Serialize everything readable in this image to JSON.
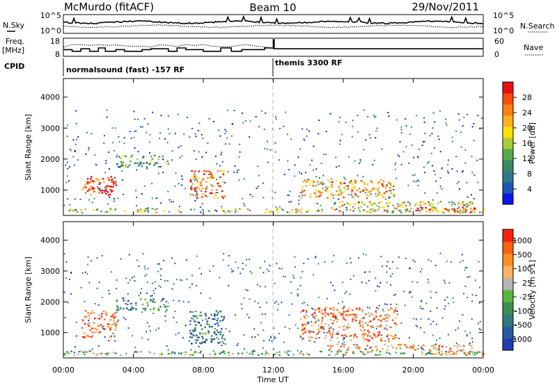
{
  "header": {
    "station": "McMurdo (fitACF)",
    "beam": "Beam 10",
    "date": "29/Nov/2011"
  },
  "noise_panel": {
    "left_label": "N.Sky",
    "right_label": "N.Search",
    "left_ticks": [
      "10^5",
      "10^0"
    ],
    "right_ticks": [
      "10^5",
      "10^0"
    ]
  },
  "freq_panel": {
    "left_label_line1": "Freq.",
    "left_label_line2": "[MHz]",
    "right_label": "Nave",
    "left_ticks": [
      "18",
      "8"
    ],
    "right_ticks": [
      "60",
      "0"
    ]
  },
  "cpid": {
    "label": "CPID",
    "segments": [
      {
        "name": "normalsound (fast) -157 RF",
        "start_hour": 0
      },
      {
        "name": "themis 3300 RF",
        "start_hour": 12
      }
    ]
  },
  "time_axis": {
    "label": "Time UT",
    "ticks": [
      "00:00",
      "04:00",
      "08:00",
      "12:00",
      "16:00",
      "20:00",
      "00:00"
    ]
  },
  "chart_data": [
    {
      "type": "heatmap",
      "title": "",
      "xlabel": "Time UT",
      "ylabel": "Slant Range [km]",
      "xlim_hours": [
        0,
        24
      ],
      "ylim_km": [
        180,
        4600
      ],
      "y_ticks": [
        "1000",
        "2000",
        "3000",
        "4000"
      ],
      "colorbar": {
        "label": "Power [dB]",
        "ticks": [
          "4",
          "8",
          "12",
          "16",
          "20",
          "24",
          "28"
        ],
        "colors": [
          "#0a18e8",
          "#1e56b4",
          "#2e7a8a",
          "#3c8a64",
          "#58a84e",
          "#a8cc3a",
          "#ffe000",
          "#ffb020",
          "#ff8010",
          "#ff4a10",
          "#e81010"
        ]
      },
      "echo_regions": [
        {
          "hours": [
            0.0,
            24.0
          ],
          "km": [
            240,
            380
          ],
          "level": 0.55
        },
        {
          "hours": [
            1.0,
            3.0
          ],
          "km": [
            800,
            1400
          ],
          "level": 0.9
        },
        {
          "hours": [
            2.0,
            2.8
          ],
          "km": [
            850,
            1250
          ],
          "level": 1.0
        },
        {
          "hours": [
            3.0,
            6.0
          ],
          "km": [
            1700,
            2100
          ],
          "level": 0.35
        },
        {
          "hours": [
            7.2,
            9.2
          ],
          "km": [
            700,
            1600
          ],
          "level": 0.8
        },
        {
          "hours": [
            13.5,
            19.0
          ],
          "km": [
            700,
            1300
          ],
          "level": 0.7
        },
        {
          "hours": [
            15.0,
            23.5
          ],
          "km": [
            400,
            600
          ],
          "level": 0.55
        },
        {
          "hours": [
            20.0,
            23.5
          ],
          "km": [
            250,
            420
          ],
          "level": 0.9
        }
      ]
    },
    {
      "type": "heatmap",
      "title": "",
      "xlabel": "Time UT",
      "ylabel": "Slant Range [km]",
      "xlim_hours": [
        0,
        24
      ],
      "ylim_km": [
        180,
        4600
      ],
      "y_ticks": [
        "1000",
        "2000",
        "3000",
        "4000"
      ],
      "colorbar": {
        "label": "Velocity [m s-1]",
        "ticks": [
          "1000",
          "500",
          "100",
          "25",
          "-25",
          "-100",
          "-500",
          "-1000"
        ],
        "colors": [
          "#1e3cb4",
          "#2a5aa0",
          "#2e7a7a",
          "#3c9050",
          "#5ab840",
          "#b4b4b4",
          "#ffb060",
          "#ff9020",
          "#ff6010",
          "#ff2010"
        ]
      },
      "echo_regions": [
        {
          "hours": [
            0.0,
            24.0
          ],
          "km": [
            240,
            380
          ],
          "level": 0.45
        },
        {
          "hours": [
            1.0,
            3.0
          ],
          "km": [
            800,
            1700
          ],
          "level": 0.75
        },
        {
          "hours": [
            3.0,
            6.0
          ],
          "km": [
            1700,
            2100
          ],
          "level": 0.3
        },
        {
          "hours": [
            7.2,
            9.2
          ],
          "km": [
            600,
            1700
          ],
          "level": 0.25
        },
        {
          "hours": [
            13.5,
            19.0
          ],
          "km": [
            700,
            1800
          ],
          "level": 0.75
        },
        {
          "hours": [
            15.0,
            23.5
          ],
          "km": [
            400,
            600
          ],
          "level": 0.7
        },
        {
          "hours": [
            20.0,
            23.5
          ],
          "km": [
            250,
            420
          ],
          "level": 0.65
        }
      ]
    }
  ]
}
